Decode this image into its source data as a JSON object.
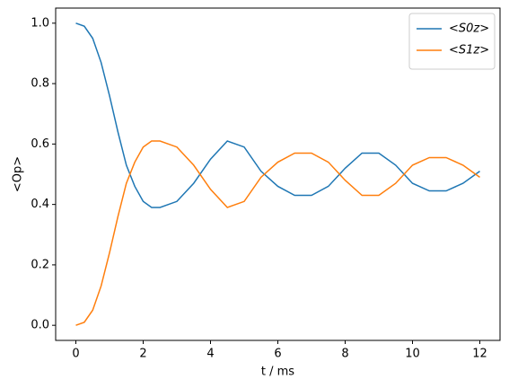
{
  "chart_data": {
    "type": "line",
    "xlabel": "t / ms",
    "ylabel": "<Op>",
    "x": [
      0,
      0.25,
      0.5,
      0.75,
      1.0,
      1.25,
      1.5,
      1.75,
      2.0,
      2.25,
      2.5,
      3.0,
      3.5,
      4.0,
      4.5,
      5.0,
      5.5,
      6.0,
      6.5,
      7.0,
      7.5,
      8.0,
      8.5,
      9.0,
      9.5,
      10.0,
      10.5,
      11.0,
      11.5,
      12.0
    ],
    "series": [
      {
        "name": "<S0z>",
        "color": "#1f77b4",
        "values": [
          1.0,
          0.99,
          0.95,
          0.87,
          0.76,
          0.64,
          0.53,
          0.46,
          0.41,
          0.39,
          0.39,
          0.41,
          0.47,
          0.55,
          0.61,
          0.59,
          0.51,
          0.46,
          0.43,
          0.43,
          0.46,
          0.52,
          0.57,
          0.57,
          0.53,
          0.47,
          0.445,
          0.445,
          0.47,
          0.51
        ]
      },
      {
        "name": "<S1z>",
        "color": "#ff7f0e",
        "values": [
          0.0,
          0.01,
          0.05,
          0.13,
          0.24,
          0.36,
          0.47,
          0.54,
          0.59,
          0.61,
          0.61,
          0.59,
          0.53,
          0.45,
          0.39,
          0.41,
          0.49,
          0.54,
          0.57,
          0.57,
          0.54,
          0.48,
          0.43,
          0.43,
          0.47,
          0.53,
          0.555,
          0.555,
          0.53,
          0.49
        ]
      }
    ],
    "xlim": [
      -0.6,
      12.6
    ],
    "xticks": [
      0,
      2,
      4,
      6,
      8,
      10,
      12
    ],
    "ylim": [
      -0.05,
      1.05
    ],
    "yticks": [
      {
        "value": 0,
        "label": "0.0"
      },
      {
        "value": 0.2,
        "label": "0.2"
      },
      {
        "value": 0.4,
        "label": "0.4"
      },
      {
        "value": 0.6,
        "label": "0.6"
      },
      {
        "value": 0.8,
        "label": "0.8"
      },
      {
        "value": 1.0,
        "label": "1.0"
      }
    ],
    "legend": "upper right"
  }
}
